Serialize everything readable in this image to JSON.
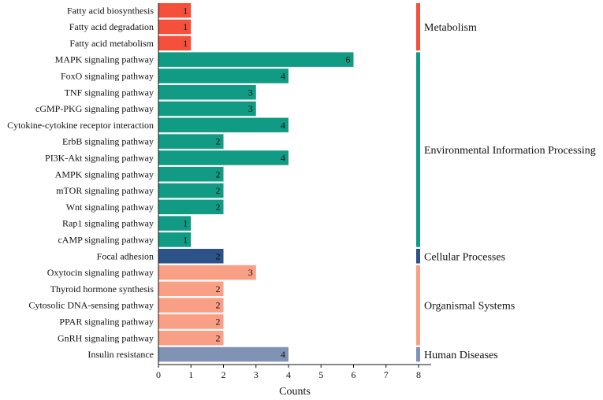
{
  "chart_data": {
    "type": "bar",
    "orientation": "horizontal",
    "xlabel": "Counts",
    "xlim": [
      0,
      8
    ],
    "xticks": [
      0,
      1,
      2,
      3,
      4,
      5,
      6,
      7,
      8
    ],
    "grid": false,
    "bars": [
      {
        "category": "Fatty acid biosynthesis",
        "value": 1,
        "group": "Metabolism"
      },
      {
        "category": "Fatty acid degradation",
        "value": 1,
        "group": "Metabolism"
      },
      {
        "category": "Fatty acid metabolism",
        "value": 1,
        "group": "Metabolism"
      },
      {
        "category": "MAPK signaling pathway",
        "value": 6,
        "group": "Environmental Information Processing"
      },
      {
        "category": "FoxO signaling pathway",
        "value": 4,
        "group": "Environmental Information Processing"
      },
      {
        "category": "TNF signaling pathway",
        "value": 3,
        "group": "Environmental Information Processing"
      },
      {
        "category": "cGMP-PKG signaling pathway",
        "value": 3,
        "group": "Environmental Information Processing"
      },
      {
        "category": "Cytokine-cytokine receptor interaction",
        "value": 4,
        "group": "Environmental Information Processing"
      },
      {
        "category": "ErbB signaling pathway",
        "value": 2,
        "group": "Environmental Information Processing"
      },
      {
        "category": "PI3K-Akt signaling pathway",
        "value": 4,
        "group": "Environmental Information Processing"
      },
      {
        "category": "AMPK signaling pathway",
        "value": 2,
        "group": "Environmental Information Processing"
      },
      {
        "category": "mTOR signaling pathway",
        "value": 2,
        "group": "Environmental Information Processing"
      },
      {
        "category": "Wnt signaling pathway",
        "value": 2,
        "group": "Environmental Information Processing"
      },
      {
        "category": "Rap1 signaling pathway",
        "value": 1,
        "group": "Environmental Information Processing"
      },
      {
        "category": "cAMP signaling pathway",
        "value": 1,
        "group": "Environmental Information Processing"
      },
      {
        "category": "Focal adhesion",
        "value": 2,
        "group": "Cellular Processes"
      },
      {
        "category": "Oxytocin signaling pathway",
        "value": 3,
        "group": "Organismal Systems"
      },
      {
        "category": "Thyroid hormone synthesis",
        "value": 2,
        "group": "Organismal Systems"
      },
      {
        "category": "Cytosolic DNA-sensing pathway",
        "value": 2,
        "group": "Organismal Systems"
      },
      {
        "category": "PPAR signaling pathway",
        "value": 2,
        "group": "Organismal Systems"
      },
      {
        "category": "GnRH signaling pathway",
        "value": 2,
        "group": "Organismal Systems"
      },
      {
        "category": "Insulin resistance",
        "value": 4,
        "group": "Human Diseases"
      }
    ],
    "groups": [
      {
        "name": "Metabolism",
        "color": "#f4503c"
      },
      {
        "name": "Environmental Information Processing",
        "color": "#119a84"
      },
      {
        "name": "Cellular Processes",
        "color": "#2d5287"
      },
      {
        "name": "Organismal Systems",
        "color": "#f99f86"
      },
      {
        "name": "Human Diseases",
        "color": "#8193b5"
      }
    ]
  }
}
